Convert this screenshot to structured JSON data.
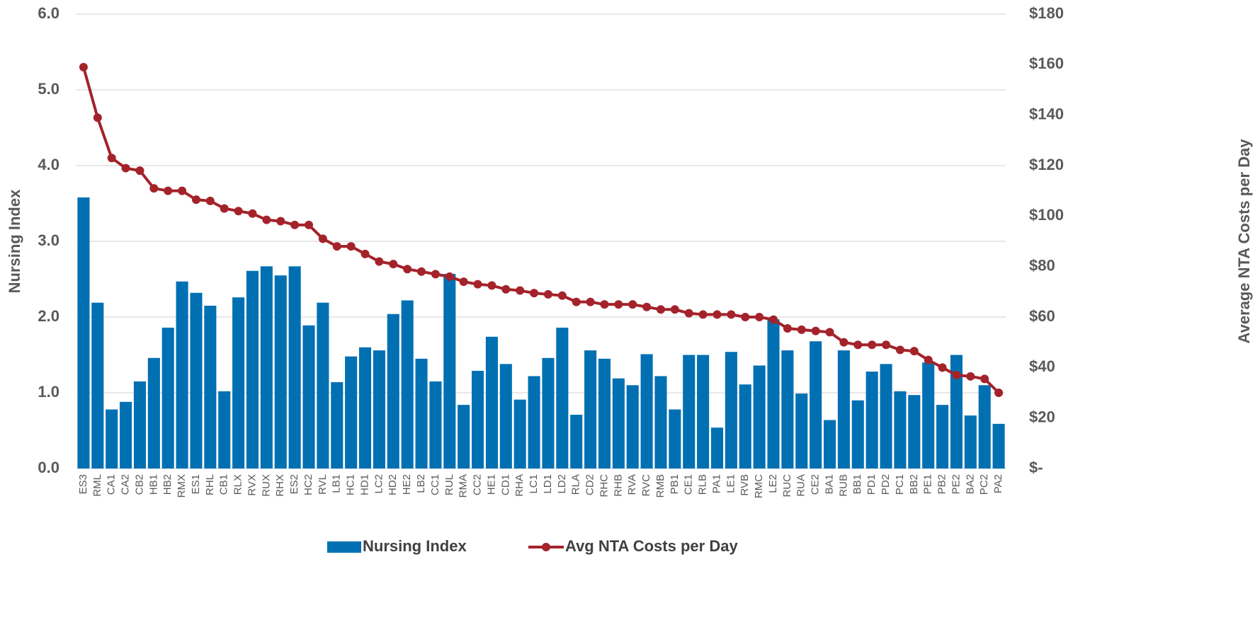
{
  "chart_data": {
    "type": "bar",
    "y_label": "Nursing Index",
    "y2_label": "Average NTA Costs per Day",
    "categories": [
      "ES3",
      "RML",
      "CA1",
      "CA2",
      "CB2",
      "HB1",
      "HB2",
      "RMX",
      "ES1",
      "RHL",
      "CB1",
      "RLX",
      "RVX",
      "RUX",
      "RHX",
      "ES2",
      "HC2",
      "RVL",
      "LB1",
      "HC1",
      "HD1",
      "LC2",
      "HD2",
      "HE2",
      "LB2",
      "CC1",
      "RUL",
      "RMA",
      "CC2",
      "HE1",
      "CD1",
      "RHA",
      "LC1",
      "LD1",
      "LD2",
      "RLA",
      "CD2",
      "RHC",
      "RHB",
      "RVA",
      "RVC",
      "RMB",
      "PB1",
      "CE1",
      "RLB",
      "PA1",
      "LE1",
      "RVB",
      "RMC",
      "LE2",
      "RUC",
      "RUA",
      "CE2",
      "BA1",
      "RUB",
      "BB1",
      "PD1",
      "PD2",
      "PC1",
      "BB2",
      "PE1",
      "PB2",
      "PE2",
      "BA2",
      "PC2",
      "PA2"
    ],
    "series": [
      {
        "name": "Nursing Index",
        "type": "bar",
        "color": "#0070b3",
        "values": [
          3.58,
          2.19,
          0.78,
          0.88,
          1.15,
          1.46,
          1.86,
          2.47,
          2.32,
          2.15,
          1.02,
          2.26,
          2.61,
          2.67,
          2.55,
          2.67,
          1.89,
          2.19,
          1.14,
          1.48,
          1.6,
          1.56,
          2.04,
          2.22,
          1.45,
          1.15,
          2.57,
          0.84,
          1.29,
          1.74,
          1.38,
          0.91,
          1.22,
          1.46,
          1.86,
          0.71,
          1.56,
          1.45,
          1.19,
          1.1,
          1.51,
          1.22,
          0.78,
          1.5,
          1.5,
          0.54,
          1.54,
          1.11,
          1.36,
          1.97,
          1.56,
          0.99,
          1.68,
          0.64,
          1.56,
          0.9,
          1.28,
          1.38,
          1.02,
          0.97,
          1.4,
          0.84,
          1.5,
          0.7,
          1.1,
          0.59
        ]
      },
      {
        "name": "Avg NTA Costs per Day",
        "type": "line",
        "axis": "y2",
        "color": "#a4232b",
        "values": [
          159,
          139,
          123,
          119,
          118,
          111,
          110,
          110,
          106.5,
          106,
          103,
          102,
          101,
          98.5,
          98,
          96.5,
          96.5,
          91,
          88,
          88,
          85,
          82,
          81,
          79,
          78,
          77,
          76,
          74,
          73,
          72.5,
          71,
          70.5,
          69.5,
          69,
          68.5,
          66,
          66,
          65,
          65,
          65,
          64,
          63,
          63,
          61.5,
          61,
          61,
          61,
          60,
          60,
          59,
          55.5,
          55,
          54.5,
          54,
          50,
          49,
          49,
          49,
          47,
          46.5,
          43,
          40,
          37,
          36.5,
          35.5,
          30
        ]
      }
    ],
    "ylim": [
      0,
      6
    ],
    "yticks": [
      {
        "value": 0,
        "label": "0.0"
      },
      {
        "value": 1,
        "label": "1.0"
      },
      {
        "value": 2,
        "label": "2.0"
      },
      {
        "value": 3,
        "label": "3.0"
      },
      {
        "value": 4,
        "label": "4.0"
      },
      {
        "value": 5,
        "label": "5.0"
      },
      {
        "value": 6,
        "label": "6.0"
      }
    ],
    "y2lim": [
      0,
      180
    ],
    "y2ticks": [
      {
        "value": 0,
        "label": "$-"
      },
      {
        "value": 20,
        "label": "$20"
      },
      {
        "value": 40,
        "label": "$40"
      },
      {
        "value": 60,
        "label": "$60"
      },
      {
        "value": 80,
        "label": "$80"
      },
      {
        "value": 100,
        "label": "$100"
      },
      {
        "value": 120,
        "label": "$120"
      },
      {
        "value": 140,
        "label": "$140"
      },
      {
        "value": 160,
        "label": "$160"
      },
      {
        "value": 180,
        "label": "$180"
      }
    ],
    "grid": true,
    "legend": "bottom"
  }
}
